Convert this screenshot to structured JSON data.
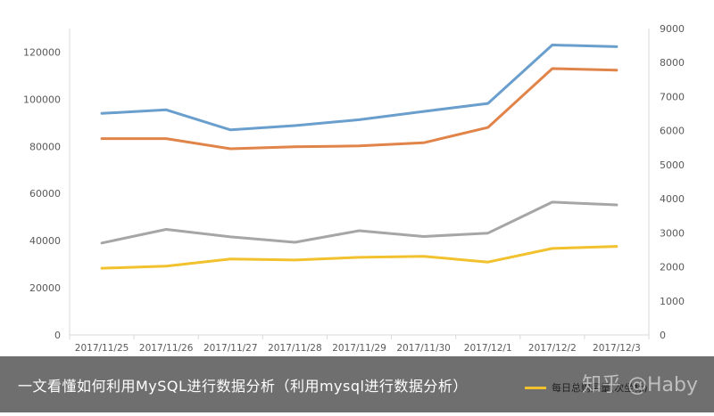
{
  "chart_data": {
    "type": "line",
    "categories": [
      "2017/11/25",
      "2017/11/26",
      "2017/11/27",
      "2017/11/28",
      "2017/11/29",
      "2017/11/30",
      "2017/12/1",
      "2017/12/2",
      "2017/12/3"
    ],
    "left_axis": {
      "min": 0,
      "max": 130000,
      "ticks": [
        "0",
        "20000",
        "40000",
        "60000",
        "80000",
        "100000",
        "120000"
      ]
    },
    "right_axis": {
      "min": 0,
      "max": 9000,
      "ticks": [
        "0",
        "1000",
        "2000",
        "3000",
        "4000",
        "5000",
        "6000",
        "7000",
        "8000",
        "9000"
      ]
    },
    "grid": false,
    "series": [
      {
        "color": "#6a9fcd",
        "axis": "left",
        "values": [
          94000,
          95500,
          87000,
          88800,
          91300,
          94800,
          98200,
          123000,
          122300
        ]
      },
      {
        "color": "#e0844a",
        "axis": "left",
        "values": [
          83300,
          83300,
          79000,
          79800,
          80200,
          81500,
          88000,
          113000,
          112300
        ]
      },
      {
        "color": "#a6a6a6",
        "axis": "right",
        "values": [
          2700,
          3100,
          2880,
          2720,
          3060,
          2890,
          2990,
          3900,
          3820
        ]
      },
      {
        "name": "每日总购买量(次坐标)",
        "color": "#f2c12e",
        "axis": "right",
        "values": [
          1960,
          2020,
          2230,
          2200,
          2280,
          2310,
          2140,
          2540,
          2600
        ]
      }
    ]
  },
  "caption": {
    "text": "一文看懂如何利用MySQL进行数据分析（利用mysql进行数据分析）",
    "watermark": "知乎 @Haby"
  }
}
